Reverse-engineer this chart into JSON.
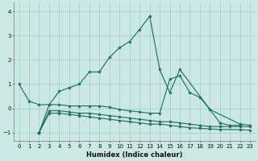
{
  "xlabel": "Humidex (Indice chaleur)",
  "background_color": "#cce8e4",
  "line_color": "#1a6b5e",
  "grid_color": "#9ecfc8",
  "xlim": [
    -0.5,
    23.5
  ],
  "ylim": [
    -1.35,
    4.35
  ],
  "yticks": [
    -1,
    0,
    1,
    2,
    3,
    4
  ],
  "xticks": [
    0,
    1,
    2,
    3,
    4,
    5,
    6,
    7,
    8,
    9,
    10,
    11,
    12,
    13,
    14,
    15,
    16,
    17,
    18,
    19,
    20,
    21,
    22,
    23
  ],
  "series": [
    {
      "x": [
        0,
        1,
        2,
        3,
        4,
        5,
        6,
        7,
        8,
        9,
        10,
        11,
        12,
        13,
        14,
        15,
        16,
        20,
        21,
        22
      ],
      "y": [
        1.0,
        0.3,
        0.15,
        0.15,
        0.7,
        0.85,
        1.0,
        1.5,
        1.5,
        2.1,
        2.5,
        2.75,
        3.25,
        3.8,
        1.6,
        0.65,
        1.6,
        -0.6,
        -0.7,
        -0.7
      ]
    },
    {
      "x": [
        2,
        3,
        4,
        5,
        6,
        7,
        8,
        9,
        10,
        11,
        12,
        13,
        14,
        15,
        16,
        17,
        18,
        19,
        22,
        23
      ],
      "y": [
        -1.0,
        0.15,
        0.15,
        0.1,
        0.1,
        0.1,
        0.1,
        0.05,
        -0.05,
        -0.1,
        -0.15,
        -0.2,
        -0.2,
        1.2,
        1.35,
        0.65,
        0.45,
        -0.05,
        -0.65,
        -0.7
      ]
    },
    {
      "x": [
        2,
        3,
        4,
        5,
        6,
        7,
        8,
        9,
        10,
        11,
        12,
        13,
        14,
        15,
        16,
        17,
        18,
        19,
        20,
        21,
        22,
        23
      ],
      "y": [
        -1.0,
        -0.1,
        -0.1,
        -0.15,
        -0.2,
        -0.2,
        -0.25,
        -0.3,
        -0.35,
        -0.4,
        -0.45,
        -0.5,
        -0.55,
        -0.55,
        -0.6,
        -0.65,
        -0.7,
        -0.75,
        -0.75,
        -0.75,
        -0.75,
        -0.75
      ]
    },
    {
      "x": [
        2,
        3,
        4,
        5,
        6,
        7,
        8,
        9,
        10,
        11,
        12,
        13,
        14,
        15,
        16,
        17,
        18,
        19,
        20,
        22,
        23
      ],
      "y": [
        -1.0,
        -0.2,
        -0.2,
        -0.25,
        -0.3,
        -0.35,
        -0.4,
        -0.45,
        -0.5,
        -0.55,
        -0.6,
        -0.65,
        -0.65,
        -0.7,
        -0.75,
        -0.8,
        -0.82,
        -0.85,
        -0.87,
        -0.88,
        -0.9
      ]
    }
  ]
}
